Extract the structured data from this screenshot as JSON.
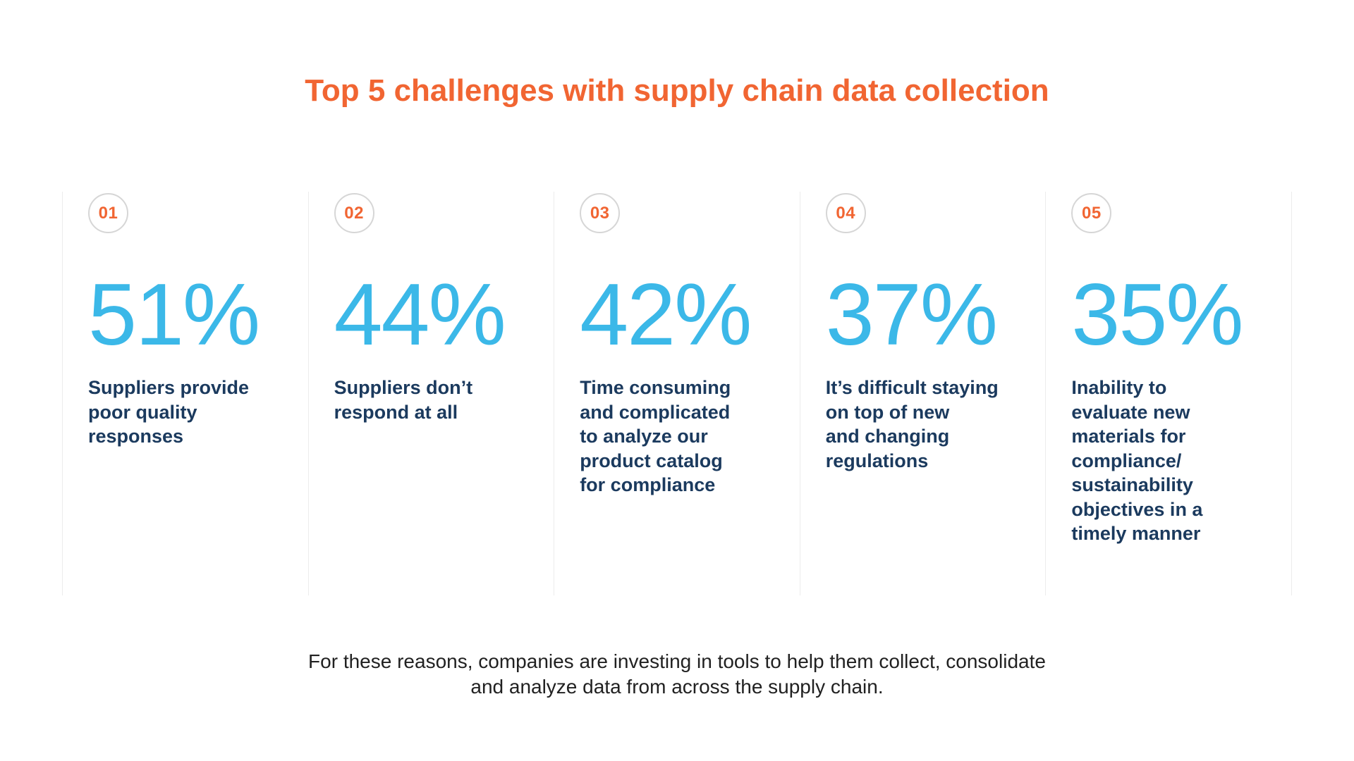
{
  "title": "Top 5 challenges with supply chain data collection",
  "colors": {
    "accent_orange": "#F16532",
    "percent_blue": "#3BB8E8",
    "text_navy": "#1B3A5E",
    "footer_text": "#212121",
    "divider": "#ECECEC",
    "badge_border": "#D6D6D6"
  },
  "challenges": [
    {
      "number": "01",
      "percent": "51%",
      "description": "Suppliers provide\npoor quality\nresponses"
    },
    {
      "number": "02",
      "percent": "44%",
      "description": "Suppliers don’t\nrespond at all"
    },
    {
      "number": "03",
      "percent": "42%",
      "description": "Time consuming\nand complicated\nto analyze our\nproduct catalog\nfor compliance"
    },
    {
      "number": "04",
      "percent": "37%",
      "description": "It’s difficult staying\non top of new\nand changing\nregulations"
    },
    {
      "number": "05",
      "percent": "35%",
      "description": "Inability to\nevaluate new\nmaterials for\ncompliance/\nsustainability\nobjectives in a\ntimely manner"
    }
  ],
  "footer": {
    "text": "For these reasons, companies are investing in tools to help them collect, consolidate\nand analyze data from across the supply chain."
  },
  "chart_data": {
    "type": "table",
    "title": "Top 5 challenges with supply chain data collection",
    "categories": [
      "Suppliers provide poor quality responses",
      "Suppliers don’t respond at all",
      "Time consuming and complicated to analyze our product catalog for compliance",
      "It’s difficult staying on top of new and changing regulations",
      "Inability to evaluate new materials for compliance/sustainability objectives in a timely manner"
    ],
    "values": [
      51,
      44,
      42,
      37,
      35
    ],
    "unit": "%",
    "ranks": [
      "01",
      "02",
      "03",
      "04",
      "05"
    ],
    "annotations": [
      "For these reasons, companies are investing in tools to help them collect, consolidate and analyze data from across the supply chain."
    ],
    "legend_position": "none",
    "grid": false
  }
}
